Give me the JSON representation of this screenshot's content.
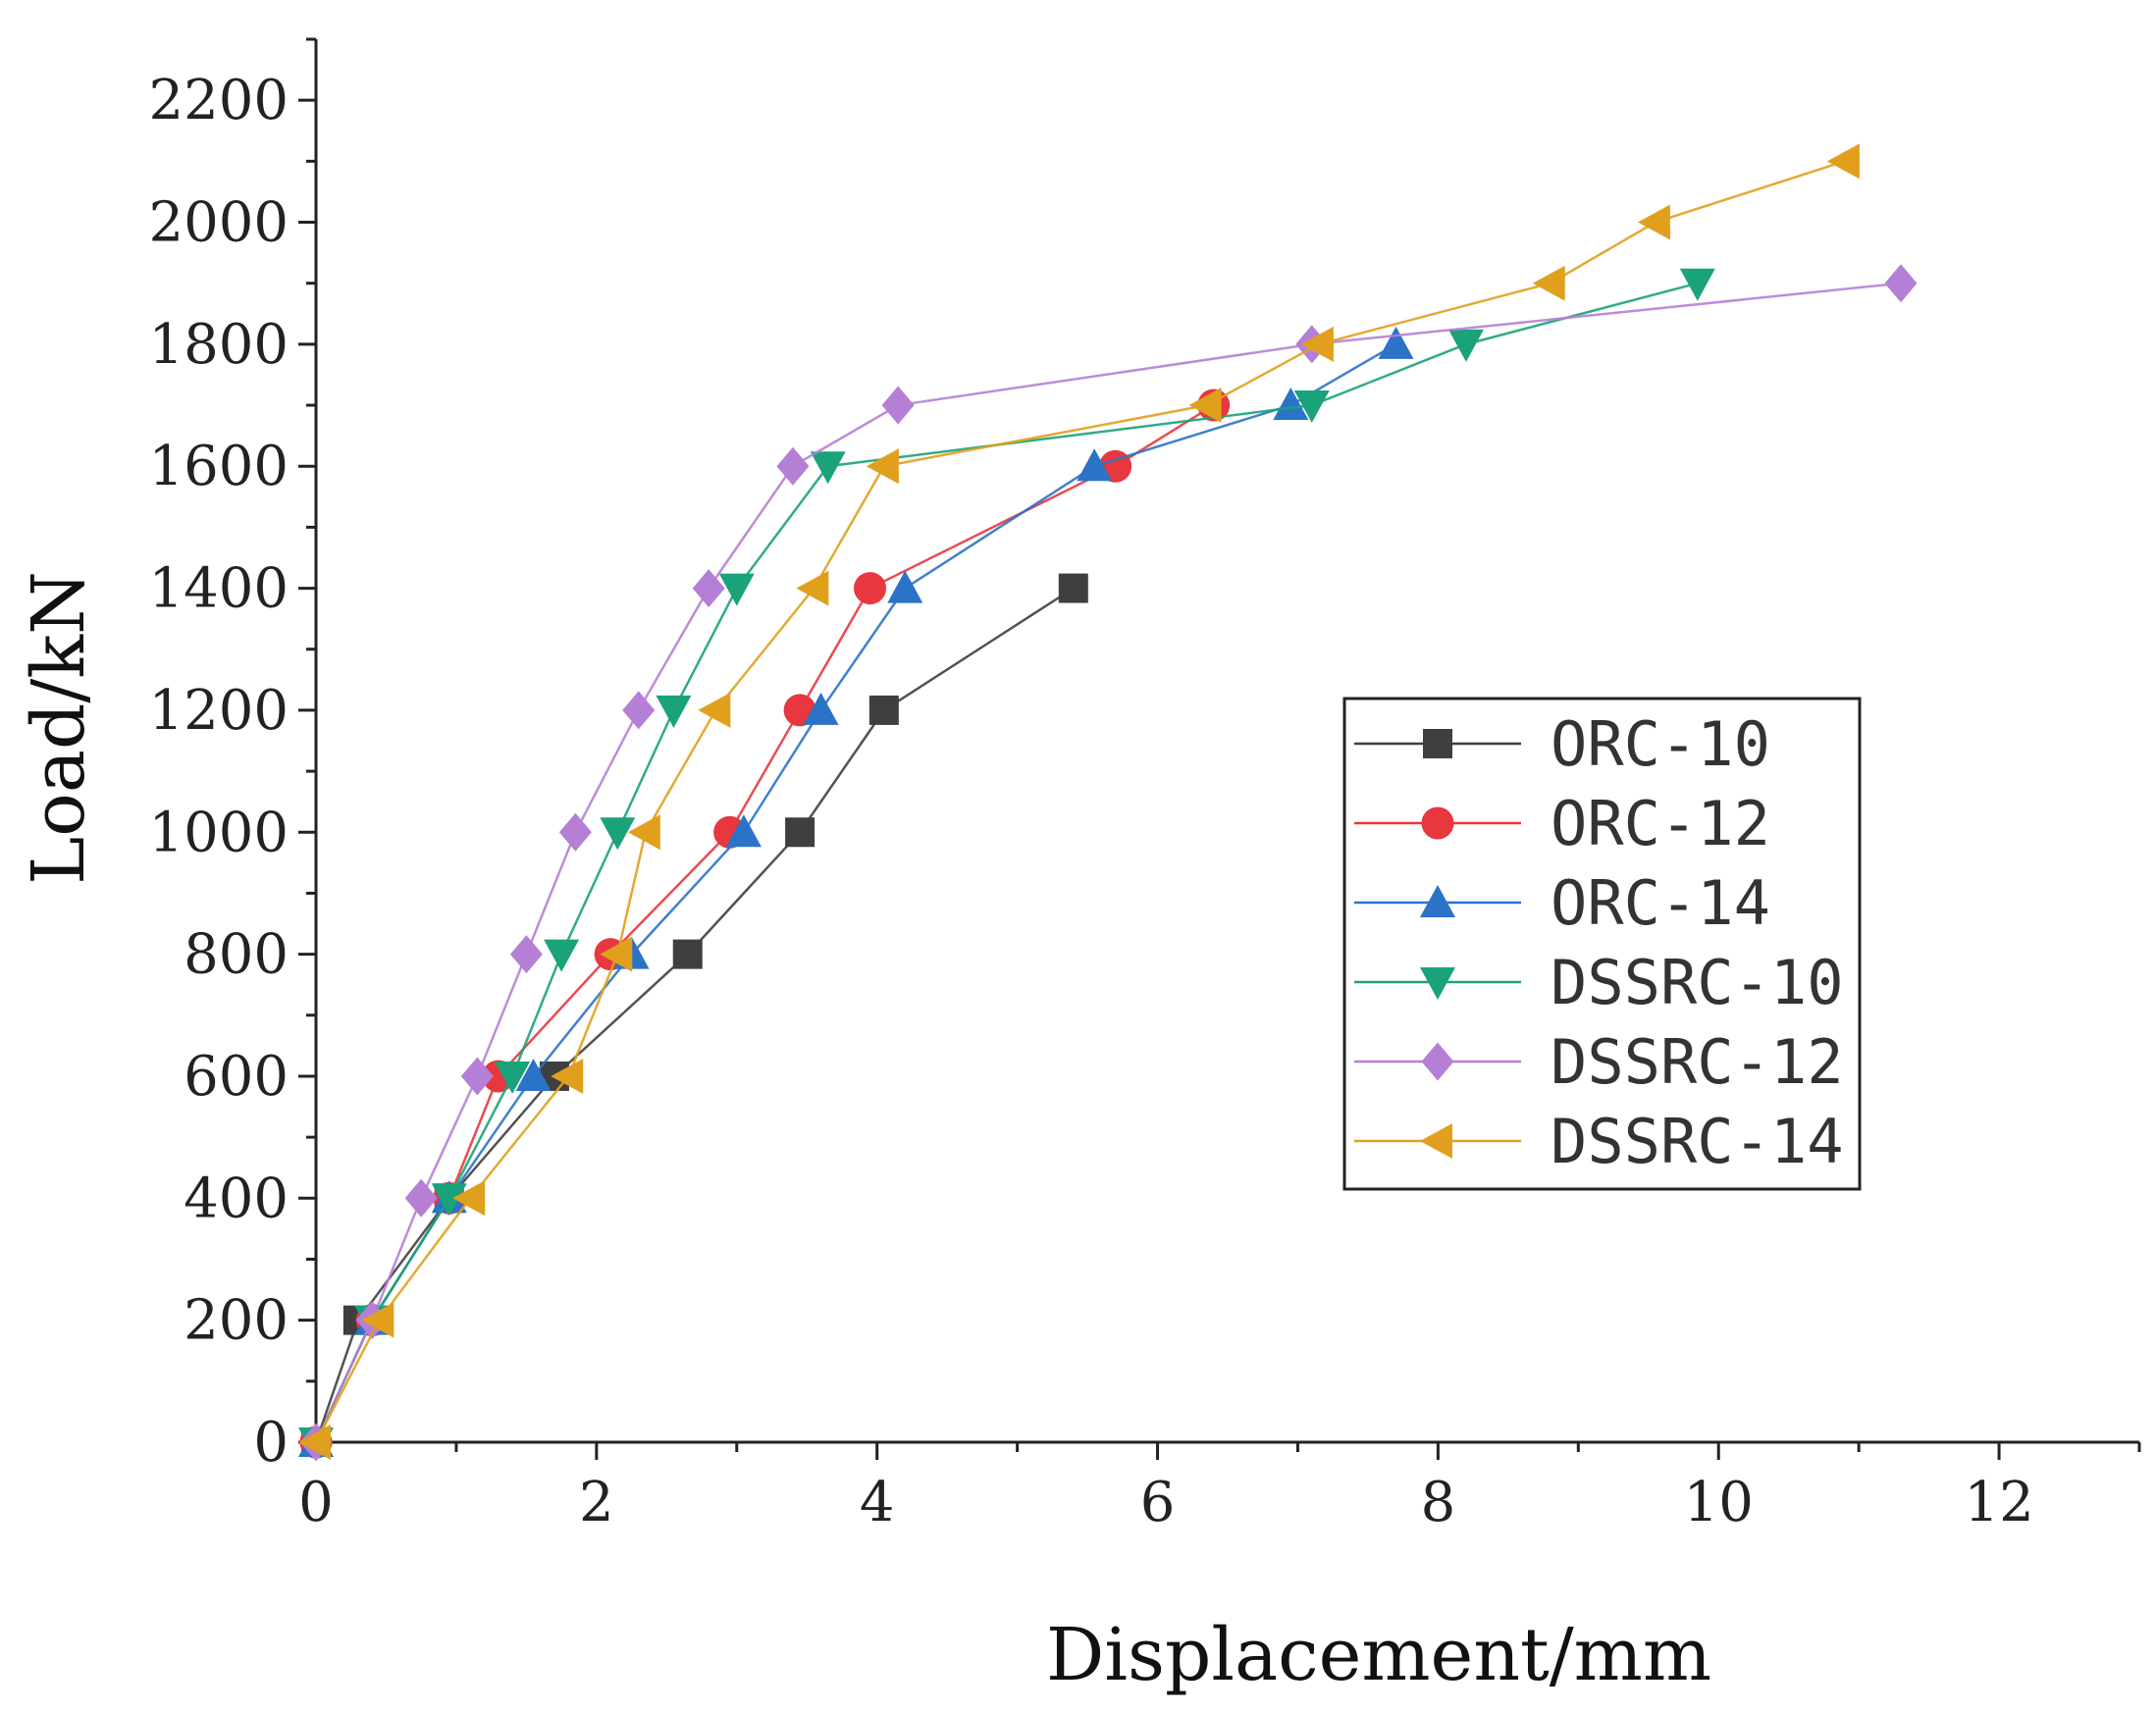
{
  "chart_data": {
    "type": "line",
    "title": "",
    "xlabel": "Displacement/mm",
    "ylabel": "Load/kN",
    "xlim": [
      0,
      13
    ],
    "ylim": [
      0,
      2300
    ],
    "xticks": [
      0,
      2,
      4,
      6,
      8,
      10,
      12
    ],
    "yticks": [
      0,
      200,
      400,
      600,
      800,
      1000,
      1200,
      1400,
      1600,
      1800,
      2000,
      2200
    ],
    "grid": false,
    "legend_position": "center-right",
    "series": [
      {
        "name": "ORC-10",
        "color": "#3f3f3f",
        "marker": "square",
        "x": [
          0,
          0.3,
          0.95,
          1.7,
          2.65,
          3.45,
          4.05,
          5.4
        ],
        "y": [
          0,
          200,
          400,
          600,
          800,
          1000,
          1200,
          1400
        ]
      },
      {
        "name": "ORC-12",
        "color": "#e8373e",
        "marker": "circle",
        "x": [
          0,
          0.4,
          0.95,
          1.3,
          2.1,
          2.95,
          3.45,
          3.95,
          5.7,
          6.4
        ],
        "y": [
          0,
          200,
          400,
          600,
          800,
          1000,
          1200,
          1400,
          1600,
          1700
        ]
      },
      {
        "name": "ORC-14",
        "color": "#2b73c6",
        "marker": "triangle-up",
        "x": [
          0,
          0.4,
          0.95,
          1.55,
          2.25,
          3.05,
          3.6,
          4.2,
          5.55,
          6.95,
          7.7
        ],
        "y": [
          0,
          200,
          400,
          600,
          800,
          1000,
          1200,
          1400,
          1600,
          1700,
          1800
        ]
      },
      {
        "name": "DSSRC-10",
        "color": "#1aa37a",
        "marker": "triangle-down",
        "x": [
          0,
          0.4,
          0.95,
          1.4,
          1.75,
          2.15,
          2.55,
          3.0,
          3.65,
          7.1,
          8.2,
          9.85
        ],
        "y": [
          0,
          200,
          400,
          600,
          800,
          1000,
          1200,
          1400,
          1600,
          1700,
          1800,
          1900
        ]
      },
      {
        "name": "DSSRC-12",
        "color": "#b57fd6",
        "marker": "diamond",
        "x": [
          0,
          0.4,
          0.75,
          1.15,
          1.5,
          1.85,
          2.3,
          2.8,
          3.4,
          4.15,
          7.1,
          11.3
        ],
        "y": [
          0,
          200,
          400,
          600,
          800,
          1000,
          1200,
          1400,
          1600,
          1700,
          1800,
          1900
        ]
      },
      {
        "name": "DSSRC-14",
        "color": "#e0a01e",
        "marker": "triangle-left",
        "x": [
          0,
          0.45,
          1.1,
          1.8,
          2.15,
          2.35,
          2.85,
          3.55,
          4.05,
          6.35,
          7.15,
          8.8,
          9.55,
          10.9
        ],
        "y": [
          0,
          200,
          400,
          600,
          800,
          1000,
          1200,
          1400,
          1600,
          1700,
          1800,
          1900,
          2000,
          2100
        ]
      }
    ]
  }
}
